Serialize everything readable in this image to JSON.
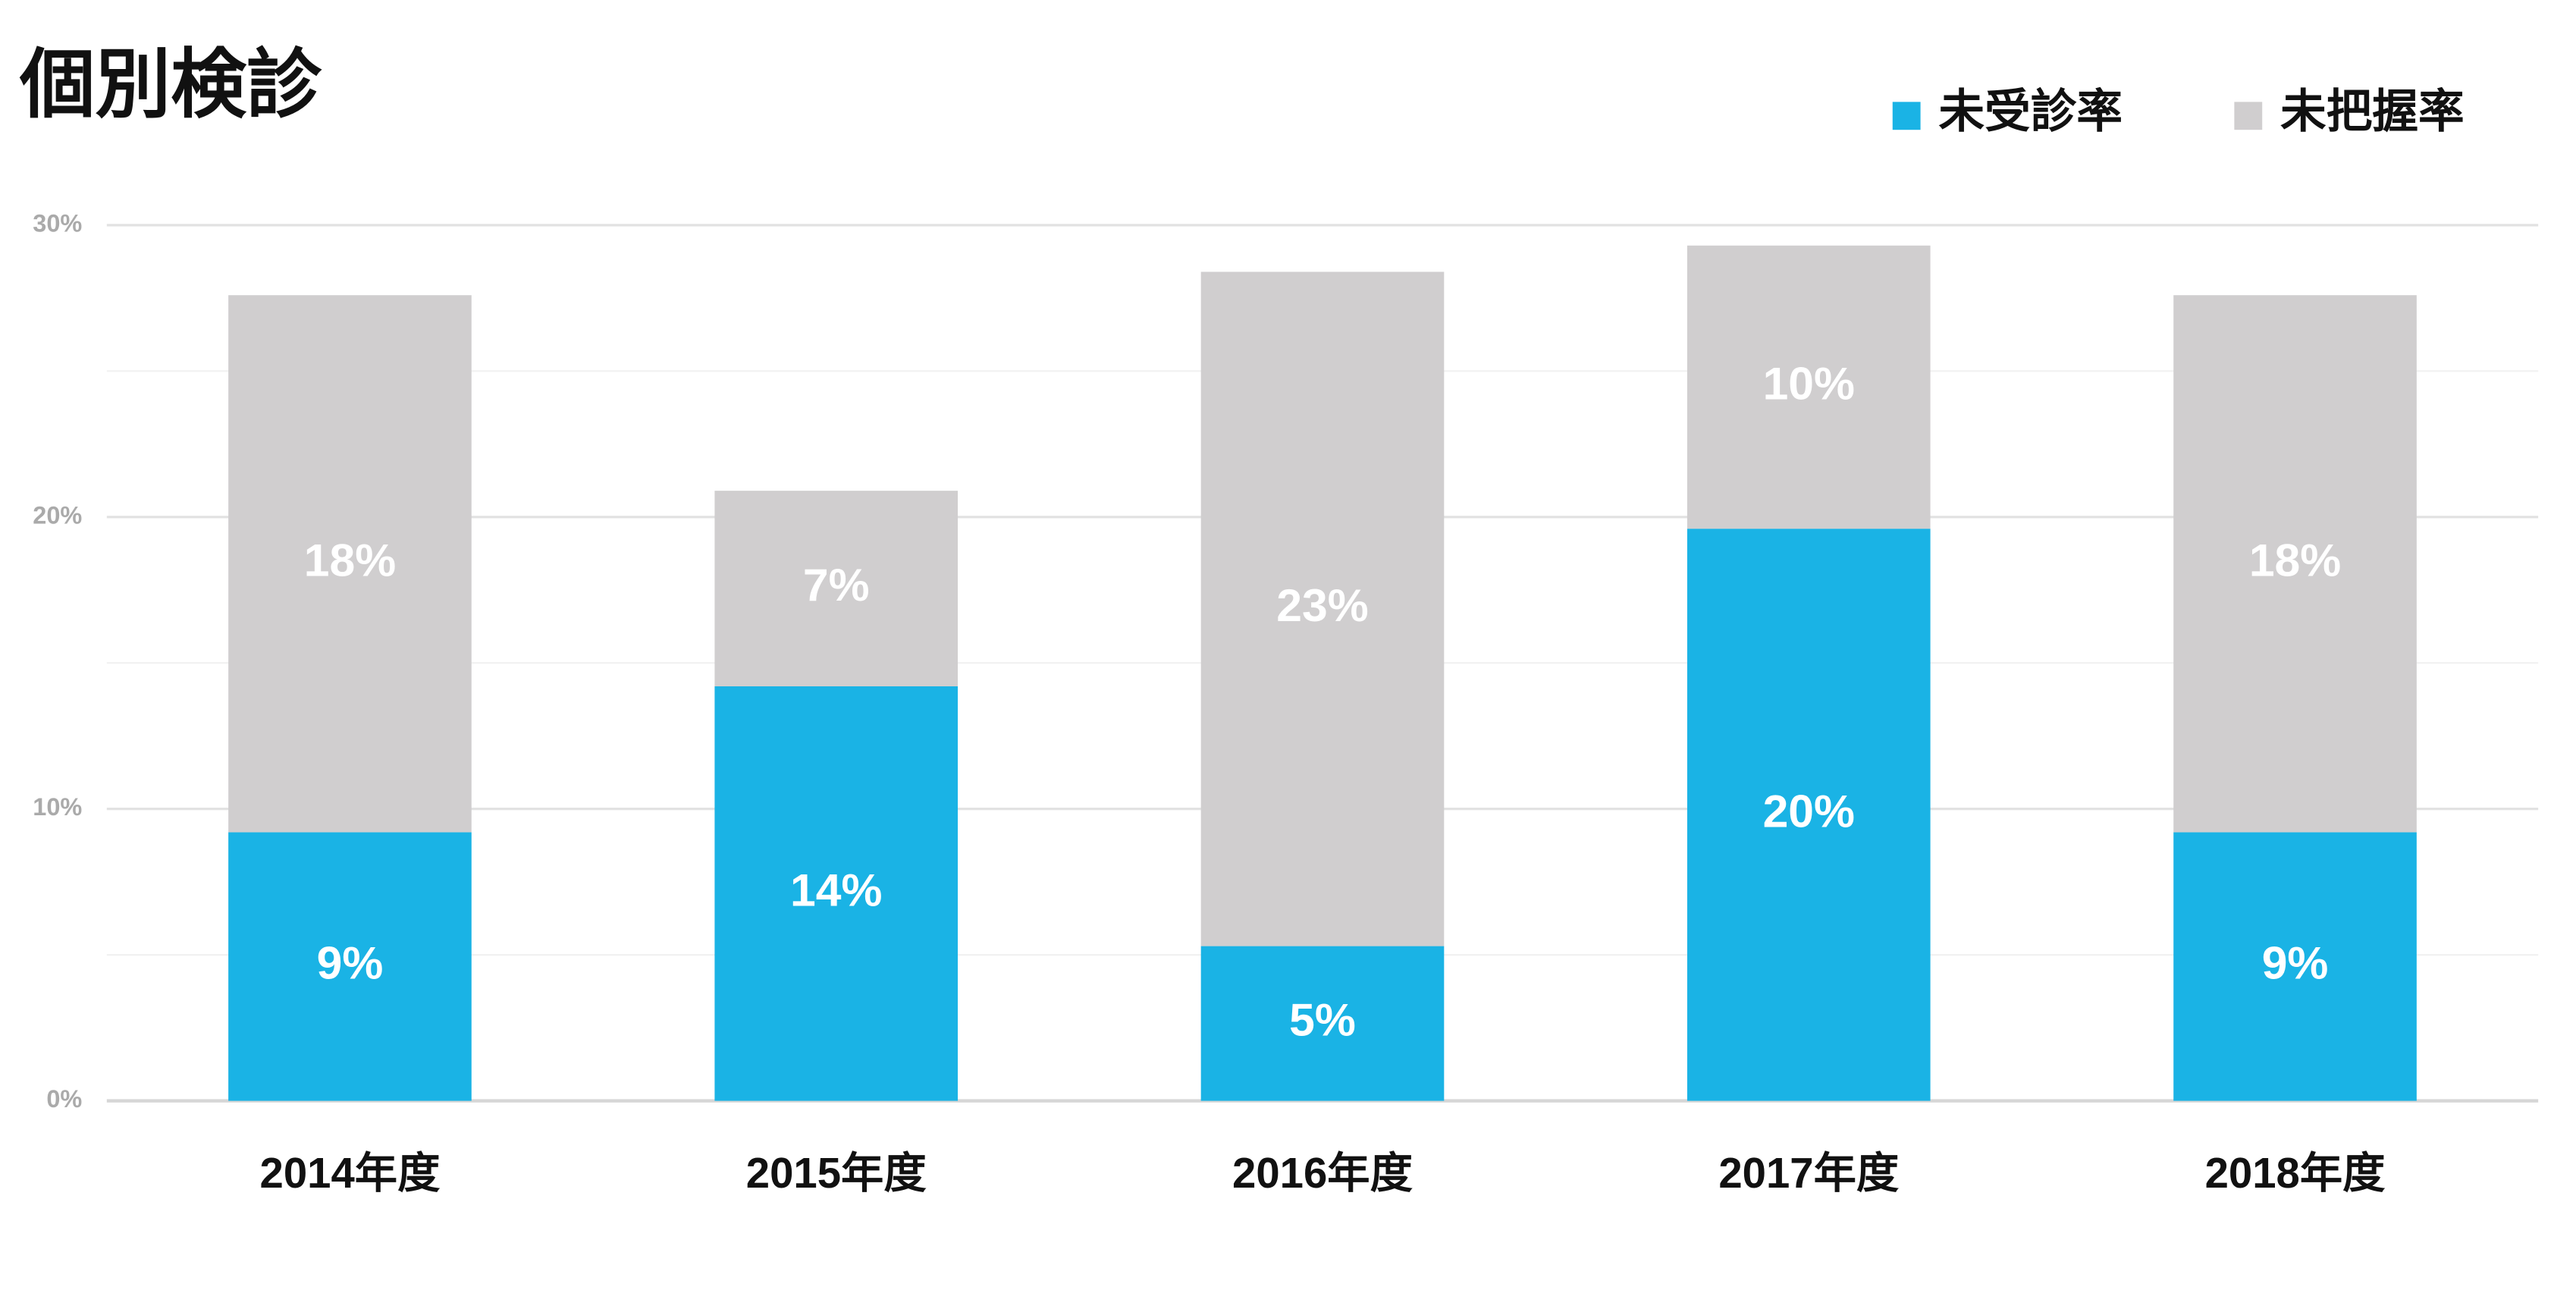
{
  "chart_data": {
    "type": "stacked_bar",
    "title": "個別検診",
    "categories": [
      "2014年度",
      "2015年度",
      "2016年度",
      "2017年度",
      "2018年度"
    ],
    "series": [
      {
        "name": "未受診率",
        "color": "#1ab3e5",
        "values": [
          9.2,
          14.2,
          5.3,
          19.6,
          9.2
        ],
        "value_labels": [
          "9%",
          "14%",
          "5%",
          "20%",
          "9%"
        ]
      },
      {
        "name": "未把握率",
        "color": "#d0cecf",
        "values": [
          18.4,
          6.7,
          23.1,
          9.7,
          18.4
        ],
        "value_labels": [
          "18%",
          "7%",
          "23%",
          "10%",
          "18%"
        ]
      }
    ],
    "ylim": [
      0,
      30
    ],
    "yticks": [
      {
        "value": 0,
        "label": "0%"
      },
      {
        "value": 10,
        "label": "10%"
      },
      {
        "value": 20,
        "label": "20%"
      },
      {
        "value": 30,
        "label": "30%"
      }
    ],
    "yminorticks": [
      5,
      15,
      25
    ],
    "grid": true,
    "legend": "top-right"
  }
}
